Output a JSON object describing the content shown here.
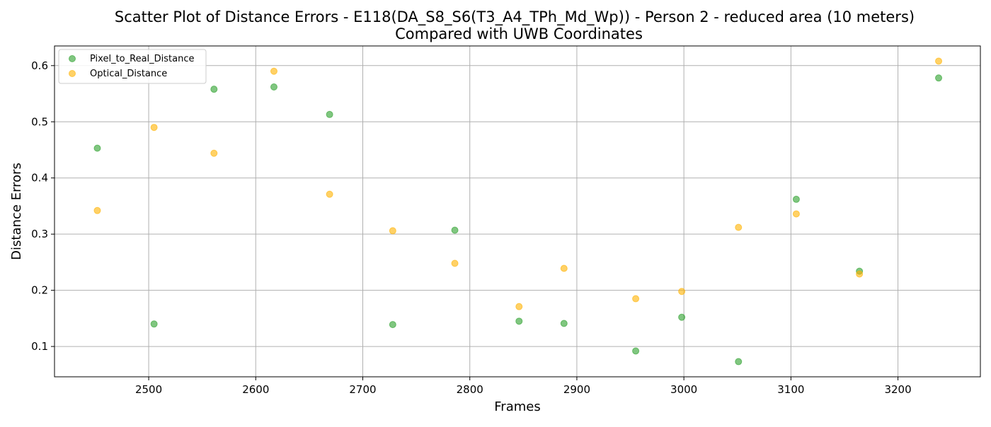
{
  "chart_data": {
    "type": "scatter",
    "title": "Scatter Plot of Distance Errors - E118(DA_S8_S6(T3_A4_TPh_Md_Wp)) - Person 2 - reduced area (10 meters)",
    "subtitle": "Compared with UWB Coordinates",
    "xlabel": "Frames",
    "ylabel": "Distance Errors",
    "xlim": [
      2412,
      3277
    ],
    "ylim": [
      0.046,
      0.635
    ],
    "xticks": [
      2500,
      2600,
      2700,
      2800,
      2900,
      3000,
      3100,
      3200
    ],
    "xtick_labels": [
      "2500",
      "2600",
      "2700",
      "2800",
      "2900",
      "3000",
      "3100",
      "3200"
    ],
    "yticks": [
      0.1,
      0.2,
      0.3,
      0.4,
      0.5,
      0.6
    ],
    "ytick_labels": [
      "0.1",
      "0.2",
      "0.3",
      "0.4",
      "0.5",
      "0.6"
    ],
    "grid": true,
    "legend_position": "top-left",
    "series": [
      {
        "name": "Pixel_to_Real_Distance",
        "color": "#2ca02c",
        "x": [
          2452,
          2505,
          2561,
          2617,
          2669,
          2728,
          2786,
          2846,
          2888,
          2955,
          2998,
          3051,
          3105,
          3164,
          3238
        ],
        "y": [
          0.453,
          0.14,
          0.558,
          0.562,
          0.513,
          0.139,
          0.307,
          0.145,
          0.141,
          0.092,
          0.152,
          0.073,
          0.362,
          0.234,
          0.578
        ]
      },
      {
        "name": "Optical_Distance",
        "color": "#ffb300",
        "x": [
          2452,
          2505,
          2561,
          2617,
          2669,
          2728,
          2786,
          2846,
          2888,
          2955,
          2998,
          3051,
          3105,
          3164,
          3238
        ],
        "y": [
          0.342,
          0.49,
          0.444,
          0.59,
          0.371,
          0.306,
          0.248,
          0.171,
          0.239,
          0.185,
          0.198,
          0.312,
          0.336,
          0.229,
          0.608
        ]
      }
    ]
  }
}
